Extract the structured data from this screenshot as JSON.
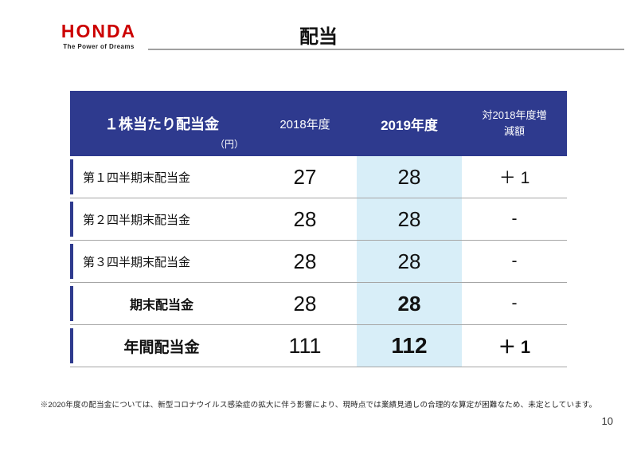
{
  "logo": {
    "brand": "HONDA",
    "tagline": "The Power of Dreams"
  },
  "page": {
    "title": "配当",
    "footnote": "※2020年度の配当金については、新型コロナウイルス感染症の拡大に伴う影響により、現時点では業績見通しの合理的な算定が困難なため、未定としています。",
    "page_number": "10"
  },
  "colors": {
    "honda_red": "#cc0000",
    "header_blue": "#2e3a8e",
    "highlight_blue": "#d8eef8",
    "separator_gray": "#a6a6a6"
  },
  "chart_data": {
    "type": "table",
    "title": "配当",
    "unit_label": "（円）",
    "columns": {
      "label": "１株当たり配当金",
      "fy2018": "2018年度",
      "fy2019": "2019年度",
      "change": "対2018年度増減額"
    },
    "rows": [
      {
        "label": "第１四半期末配当金",
        "fy2018": "27",
        "fy2019": "28",
        "change": "＋ 1"
      },
      {
        "label": "第２四半期末配当金",
        "fy2018": "28",
        "fy2019": "28",
        "change": "-"
      },
      {
        "label": "第３四半期末配当金",
        "fy2018": "28",
        "fy2019": "28",
        "change": "-"
      },
      {
        "label": "期末配当金",
        "fy2018": "28",
        "fy2019": "28",
        "change": "-"
      },
      {
        "label": "年間配当金",
        "fy2018": "111",
        "fy2019": "112",
        "change": "＋ 1"
      }
    ]
  }
}
